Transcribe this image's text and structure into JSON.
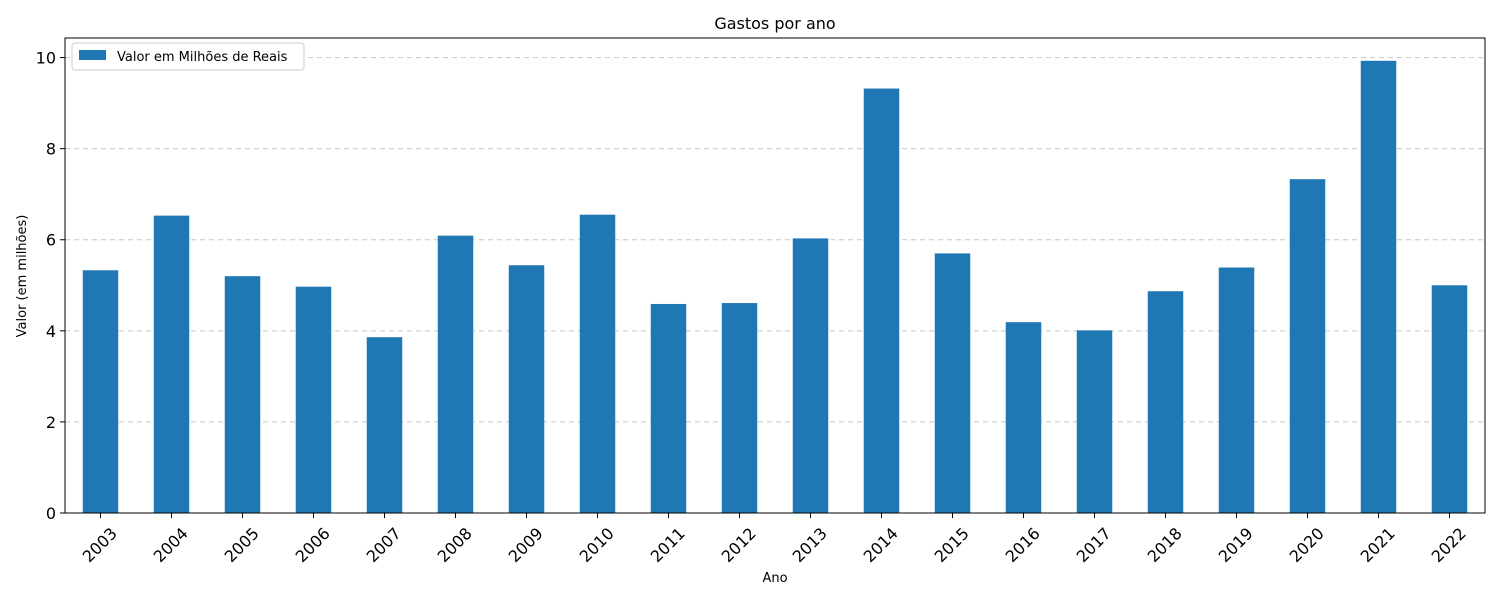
{
  "chart_data": {
    "type": "bar",
    "title": "Gastos por ano",
    "xlabel": "Ano",
    "ylabel": "Valor (em milhões)",
    "categories": [
      "2003",
      "2004",
      "2005",
      "2006",
      "2007",
      "2008",
      "2009",
      "2010",
      "2011",
      "2012",
      "2013",
      "2014",
      "2015",
      "2016",
      "2017",
      "2018",
      "2019",
      "2020",
      "2021",
      "2022"
    ],
    "series": [
      {
        "name": "Valor em Milhões de Reais",
        "values": [
          5.33,
          6.53,
          5.2,
          4.97,
          3.86,
          6.09,
          5.44,
          6.55,
          4.59,
          4.61,
          6.03,
          9.32,
          5.7,
          4.19,
          4.01,
          4.87,
          5.39,
          7.33,
          9.93,
          5.0
        ],
        "color": "#1f77b4"
      }
    ],
    "ylim": [
      0,
      10.43
    ],
    "yticks": [
      0,
      2,
      4,
      6,
      8,
      10
    ],
    "grid": "y-dashed",
    "legend_position": "top-left",
    "xtick_rotation": -45
  }
}
